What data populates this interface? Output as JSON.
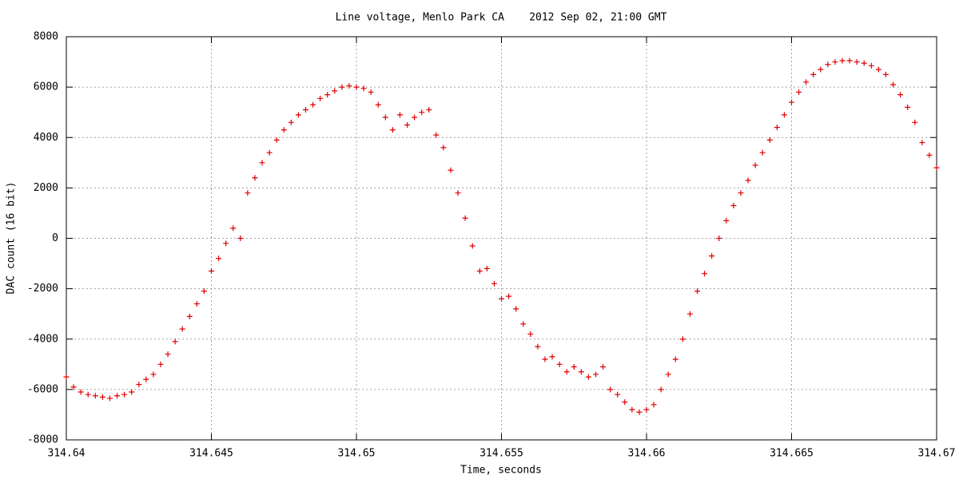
{
  "chart_data": {
    "type": "scatter",
    "title": "Line voltage, Menlo Park CA    2012 Sep 02, 21:00 GMT",
    "x_label": "Time, seconds",
    "y_label": "DAC count (16 bit)",
    "xlim": [
      314.64,
      314.67
    ],
    "xticks": [
      314.64,
      314.645,
      314.65,
      314.655,
      314.66,
      314.665,
      314.67
    ],
    "ylim": [
      -8000,
      8000
    ],
    "yticks": [
      -8000,
      -6000,
      -4000,
      -2000,
      0,
      2000,
      4000,
      6000,
      8000
    ],
    "grid": true,
    "marker": "+",
    "series": [
      {
        "color": "#e00000",
        "x": [
          314.64,
          314.64025,
          314.6405,
          314.64075,
          314.641,
          314.64125,
          314.6415,
          314.64175,
          314.642,
          314.64225,
          314.6425,
          314.64275,
          314.643,
          314.64325,
          314.6435,
          314.64375,
          314.644,
          314.64425,
          314.6445,
          314.64475,
          314.645,
          314.64525,
          314.6455,
          314.64575,
          314.646,
          314.64625,
          314.6465,
          314.64675,
          314.647,
          314.64725,
          314.6475,
          314.64775,
          314.648,
          314.64825,
          314.6485,
          314.64875,
          314.649,
          314.64925,
          314.6495,
          314.64975,
          314.65,
          314.65025,
          314.6505,
          314.65075,
          314.651,
          314.65125,
          314.6515,
          314.65175,
          314.652,
          314.65225,
          314.6525,
          314.65275,
          314.653,
          314.65325,
          314.6535,
          314.65375,
          314.654,
          314.65425,
          314.6545,
          314.65475,
          314.655,
          314.65525,
          314.6555,
          314.65575,
          314.656,
          314.65625,
          314.6565,
          314.65675,
          314.657,
          314.65725,
          314.6575,
          314.65775,
          314.658,
          314.65825,
          314.6585,
          314.65875,
          314.659,
          314.65925,
          314.6595,
          314.65975,
          314.66,
          314.66025,
          314.6605,
          314.66075,
          314.661,
          314.66125,
          314.6615,
          314.66175,
          314.662,
          314.66225,
          314.6625,
          314.66275,
          314.663,
          314.66325,
          314.6635,
          314.66375,
          314.664,
          314.66425,
          314.6645,
          314.66475,
          314.665,
          314.66525,
          314.6655,
          314.66575,
          314.666,
          314.66625,
          314.6665,
          314.66675,
          314.667,
          314.66725,
          314.6675,
          314.66775,
          314.668,
          314.66825,
          314.6685,
          314.66875,
          314.669,
          314.66925,
          314.6695,
          314.66975,
          314.67
        ],
        "values": [
          -5500,
          -5900,
          -6100,
          -6200,
          -6250,
          -6300,
          -6350,
          -6250,
          -6200,
          -6100,
          -5800,
          -5600,
          -5400,
          -5000,
          -4600,
          -4100,
          -3600,
          -3100,
          -2600,
          -2100,
          -1300,
          -800,
          -200,
          400,
          0,
          1800,
          2400,
          3000,
          3400,
          3900,
          4300,
          4600,
          4900,
          5100,
          5300,
          5550,
          5700,
          5850,
          6000,
          6050,
          6000,
          5950,
          5800,
          5300,
          4800,
          4300,
          4900,
          4500,
          4800,
          5000,
          5100,
          4100,
          3600,
          2700,
          1800,
          800,
          -300,
          -1300,
          -1200,
          -1800,
          -2400,
          -2300,
          -2800,
          -3400,
          -3800,
          -4300,
          -4800,
          -4700,
          -5000,
          -5300,
          -5100,
          -5300,
          -5500,
          -5400,
          -5100,
          -6000,
          -6200,
          -6500,
          -6800,
          -6900,
          -6800,
          -6600,
          -6000,
          -5400,
          -4800,
          -4000,
          -3000,
          -2100,
          -1400,
          -700,
          0,
          700,
          1300,
          1800,
          2300,
          2900,
          3400,
          3900,
          4400,
          4900,
          5400,
          5800,
          6200,
          6500,
          6700,
          6900,
          7000,
          7050,
          7050,
          7000,
          6950,
          6850,
          6700,
          6500,
          6100,
          5700,
          5200,
          4600,
          3800,
          3300,
          2800
        ]
      }
    ]
  }
}
